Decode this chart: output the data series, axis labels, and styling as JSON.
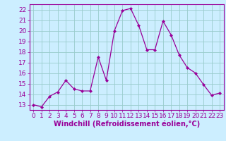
{
  "x": [
    0,
    1,
    2,
    3,
    4,
    5,
    6,
    7,
    8,
    9,
    10,
    11,
    12,
    13,
    14,
    15,
    16,
    17,
    18,
    19,
    20,
    21,
    22,
    23
  ],
  "y": [
    13,
    12.8,
    13.8,
    14.2,
    15.3,
    14.5,
    14.3,
    14.3,
    17.5,
    15.3,
    20.0,
    21.9,
    22.1,
    20.5,
    18.2,
    18.2,
    20.9,
    19.6,
    17.7,
    16.5,
    16.0,
    14.9,
    13.9,
    14.1
  ],
  "line_color": "#990099",
  "marker": "D",
  "marker_size": 2,
  "bg_color": "#cceeff",
  "grid_color": "#99cccc",
  "xlabel": "Windchill (Refroidissement éolien,°C)",
  "xlabel_fontsize": 7,
  "xtick_labels": [
    "0",
    "1",
    "2",
    "3",
    "4",
    "5",
    "6",
    "7",
    "8",
    "9",
    "10",
    "11",
    "12",
    "13",
    "14",
    "15",
    "16",
    "17",
    "18",
    "19",
    "20",
    "21",
    "22",
    "23"
  ],
  "ylim": [
    12.5,
    22.5
  ],
  "xlim": [
    -0.5,
    23.5
  ],
  "yticks": [
    13,
    14,
    15,
    16,
    17,
    18,
    19,
    20,
    21,
    22
  ],
  "tick_fontsize": 6.5
}
